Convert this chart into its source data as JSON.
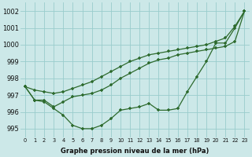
{
  "series1": [
    997.5,
    996.7,
    996.6,
    996.2,
    995.8,
    995.2,
    995.0,
    995.0,
    995.2,
    995.6,
    996.1,
    996.2,
    996.3,
    996.5,
    996.1,
    996.1,
    996.2,
    997.2,
    998.1,
    999.0,
    1000.1,
    1000.1,
    1001.0,
    1002.0
  ],
  "series2": [
    997.5,
    996.7,
    996.7,
    996.3,
    996.6,
    996.9,
    997.0,
    997.1,
    997.3,
    997.6,
    998.0,
    998.3,
    998.6,
    998.9,
    999.1,
    999.2,
    999.4,
    999.5,
    999.6,
    999.7,
    999.8,
    999.9,
    1000.2,
    1002.0
  ],
  "series3": [
    997.5,
    997.3,
    997.2,
    997.1,
    997.2,
    997.4,
    997.6,
    997.8,
    998.1,
    998.4,
    998.7,
    999.0,
    999.2,
    999.4,
    999.5,
    999.6,
    999.7,
    999.8,
    999.9,
    1000.0,
    1000.2,
    1000.4,
    1001.1,
    1002.0
  ],
  "x": [
    0,
    1,
    2,
    3,
    4,
    5,
    6,
    7,
    8,
    9,
    10,
    11,
    12,
    13,
    14,
    15,
    16,
    17,
    18,
    19,
    20,
    21,
    22,
    23
  ],
  "ylim": [
    994.5,
    1002.5
  ],
  "yticks": [
    995,
    996,
    997,
    998,
    999,
    1000,
    1001,
    1002
  ],
  "xtick_labels": [
    "0",
    "1",
    "2",
    "3",
    "4",
    "5",
    "6",
    "7",
    "8",
    "9",
    "10",
    "11",
    "12",
    "13",
    "14",
    "15",
    "16",
    "17",
    "18",
    "19",
    "20",
    "21",
    "22",
    "23"
  ],
  "xlabel": "Graphe pression niveau de la mer (hPa)",
  "line_color": "#2d6a2d",
  "marker": "+",
  "bg_color": "#cce8e8",
  "grid_color": "#99cccc",
  "title": ""
}
